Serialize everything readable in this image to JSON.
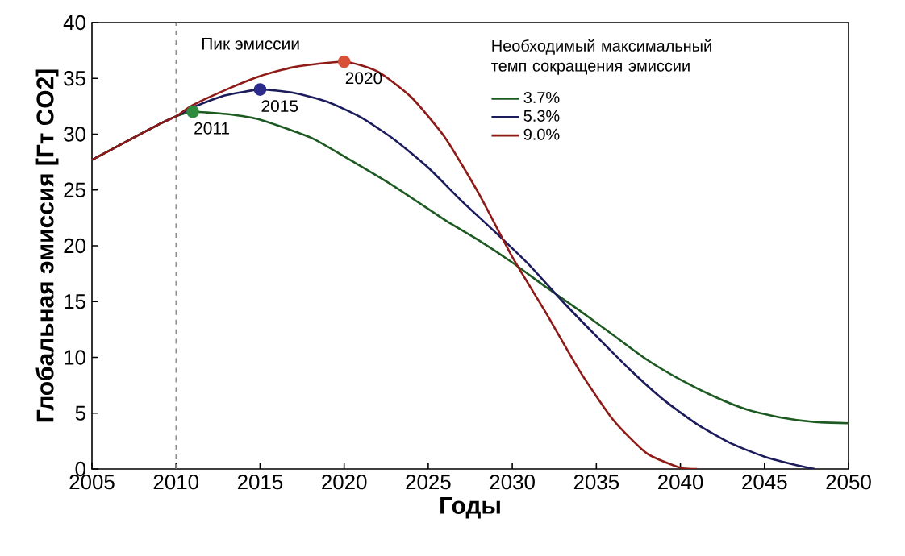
{
  "chart_data": {
    "type": "line",
    "xlabel": "Годы",
    "ylabel": "Глобальная эмиссия [Гт CO2]",
    "legend_title": "Необходимый максимальный темп сокращения эмиссии",
    "legend": "top right",
    "grid": false,
    "xlim": [
      2005,
      2050
    ],
    "xticks": [
      2005,
      2010,
      2015,
      2020,
      2025,
      2030,
      2035,
      2040,
      2045,
      2050
    ],
    "ylim": [
      0,
      40
    ],
    "yticks": [
      0,
      5,
      10,
      15,
      20,
      25,
      30,
      35,
      40
    ],
    "ref_lines": [
      {
        "axis": "x",
        "value": 2010,
        "label": "Пик эмиссии",
        "color": "#888888",
        "line_style": "dashed"
      }
    ],
    "annotations": [
      {
        "text": "2011",
        "x": 2011,
        "y": 32.0
      },
      {
        "text": "2015",
        "x": 2015,
        "y": 34.0
      },
      {
        "text": "2020",
        "x": 2020,
        "y": 36.5
      }
    ],
    "series": [
      {
        "name": "3.7%",
        "color": "#1d5a22",
        "x": [
          2005,
          2007,
          2009,
          2010,
          2011,
          2013,
          2015,
          2018,
          2020,
          2023,
          2026,
          2028,
          2030,
          2032,
          2034,
          2036,
          2038,
          2040,
          2042,
          2044,
          2046,
          2048,
          2050
        ],
        "values": [
          27.7,
          29.3,
          30.9,
          31.6,
          32.0,
          31.8,
          31.3,
          29.7,
          28.0,
          25.3,
          22.3,
          20.5,
          18.5,
          16.3,
          14.2,
          12.0,
          9.8,
          8.0,
          6.5,
          5.3,
          4.6,
          4.2,
          4.1
        ]
      },
      {
        "name": "5.3%",
        "color": "#1c1b5c",
        "x": [
          2005,
          2007,
          2009,
          2010,
          2011,
          2012,
          2013,
          2015,
          2017,
          2019,
          2021,
          2023,
          2025,
          2027,
          2029,
          2031,
          2033,
          2035,
          2037,
          2039,
          2041,
          2043,
          2045,
          2047,
          2048
        ],
        "values": [
          27.7,
          29.3,
          30.9,
          31.6,
          32.4,
          33.0,
          33.5,
          34.0,
          33.7,
          32.9,
          31.5,
          29.5,
          27.0,
          24.0,
          21.2,
          18.3,
          15.0,
          11.9,
          8.9,
          6.2,
          4.0,
          2.3,
          1.1,
          0.3,
          0
        ]
      },
      {
        "name": "9.0%",
        "color": "#8e1b17",
        "x": [
          2005,
          2007,
          2009,
          2010,
          2011,
          2013,
          2015,
          2017,
          2020,
          2022,
          2024,
          2026,
          2028,
          2030,
          2032,
          2034,
          2036,
          2038,
          2040,
          2041
        ],
        "values": [
          27.7,
          29.3,
          30.9,
          31.6,
          32.6,
          34.0,
          35.2,
          36.0,
          36.5,
          35.6,
          33.3,
          29.7,
          24.7,
          19.0,
          14.0,
          8.8,
          4.4,
          1.4,
          0.1,
          0
        ]
      },
      {
        "type": "scatter",
        "color": "#2e8b3e",
        "x": [
          2011
        ],
        "values": [
          32.0
        ]
      },
      {
        "type": "scatter",
        "color": "#2b2b8c",
        "x": [
          2015
        ],
        "values": [
          34.0
        ]
      },
      {
        "type": "scatter",
        "color": "#d9503a",
        "x": [
          2020
        ],
        "values": [
          36.5
        ]
      }
    ]
  }
}
